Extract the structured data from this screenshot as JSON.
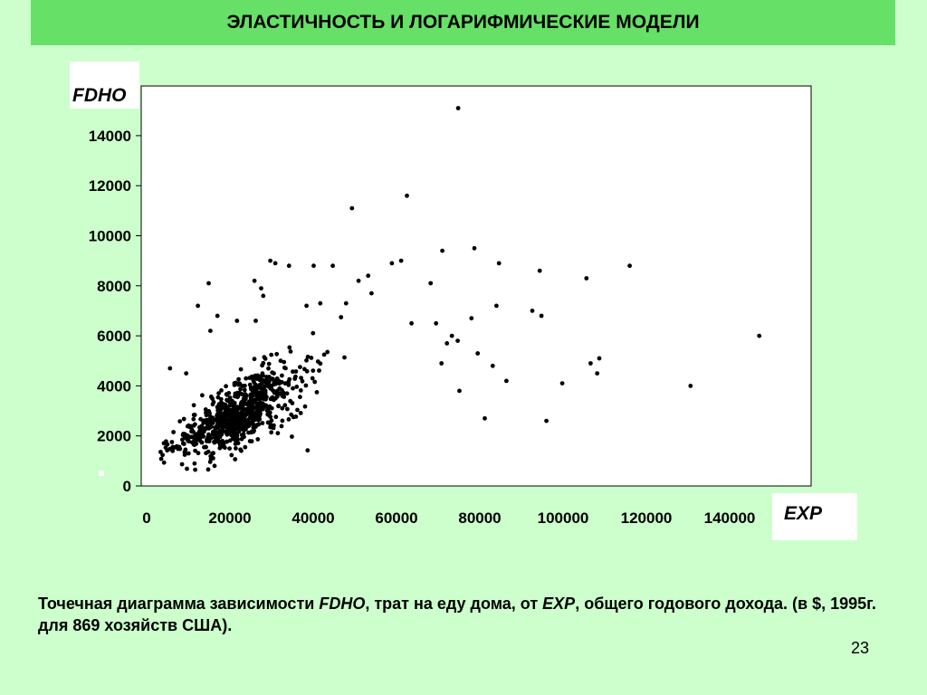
{
  "slide": {
    "title": "ЭЛАСТИЧНОСТЬ И ЛОГАРИФМИЧЕСКИЕ МОДЕЛИ",
    "caption_p1": "Точечная диаграмма зависимости ",
    "caption_fdho": "FDHO",
    "caption_p2": ", трат на  еду дома, от ",
    "caption_exp": "EXP",
    "caption_p3": ", общего годового дохода. (в $, 1995г. для   869 хозяйств США).",
    "page_number": "23"
  },
  "colors": {
    "background": "#ccffcc",
    "title_bar": "#66e066",
    "plot_area": "#ffffff",
    "points": "#000000"
  },
  "chart_data": {
    "type": "scatter",
    "xlabel": "EXP",
    "ylabel": "FDHO",
    "xlim": [
      0,
      160000
    ],
    "ylim": [
      0,
      16000
    ],
    "x_ticks": [
      0,
      20000,
      40000,
      60000,
      80000,
      100000,
      120000,
      140000
    ],
    "y_ticks": [
      0,
      2000,
      4000,
      6000,
      8000,
      10000,
      12000,
      14000
    ],
    "grid": false,
    "points": [
      [
        74800,
        15100
      ],
      [
        62500,
        11600
      ],
      [
        49300,
        11100
      ],
      [
        71000,
        9400
      ],
      [
        78700,
        9500
      ],
      [
        84600,
        8900
      ],
      [
        94400,
        8600
      ],
      [
        105600,
        8300
      ],
      [
        116000,
        8800
      ],
      [
        147100,
        6000
      ],
      [
        130600,
        4000
      ],
      [
        99800,
        4100
      ],
      [
        96000,
        2600
      ],
      [
        108200,
        4500
      ],
      [
        108700,
        5100
      ],
      [
        106600,
        4900
      ],
      [
        84000,
        7200
      ],
      [
        92600,
        7000
      ],
      [
        94800,
        6800
      ],
      [
        81200,
        2700
      ],
      [
        86400,
        4200
      ],
      [
        83100,
        4800
      ],
      [
        78000,
        6700
      ],
      [
        79500,
        5300
      ],
      [
        72100,
        5700
      ],
      [
        73300,
        6000
      ],
      [
        74700,
        5800
      ],
      [
        70800,
        4900
      ],
      [
        75100,
        3800
      ],
      [
        69500,
        6500
      ],
      [
        63600,
        6500
      ],
      [
        68200,
        8100
      ],
      [
        58900,
        8900
      ],
      [
        61100,
        9000
      ],
      [
        29700,
        9000
      ],
      [
        30900,
        8900
      ],
      [
        34200,
        8800
      ],
      [
        40100,
        8800
      ],
      [
        44700,
        8800
      ],
      [
        50900,
        8200
      ],
      [
        53200,
        8400
      ],
      [
        54000,
        7700
      ],
      [
        47900,
        7300
      ],
      [
        41700,
        7300
      ],
      [
        38400,
        7200
      ],
      [
        14900,
        8100
      ],
      [
        25900,
        8200
      ],
      [
        27500,
        7900
      ],
      [
        28000,
        7600
      ],
      [
        12300,
        7200
      ],
      [
        17000,
        6800
      ],
      [
        21700,
        6600
      ],
      [
        26200,
        6600
      ],
      [
        9500,
        4500
      ],
      [
        5600,
        4700
      ],
      [
        15300,
        6200
      ]
    ],
    "cluster": {
      "x_mean": 22000,
      "x_sd": 15000,
      "y_intercept": 1000,
      "y_slope": 0.085,
      "y_sd_base": 600,
      "y_sd_slope": 0.02,
      "count": 813,
      "seed": 7
    }
  }
}
